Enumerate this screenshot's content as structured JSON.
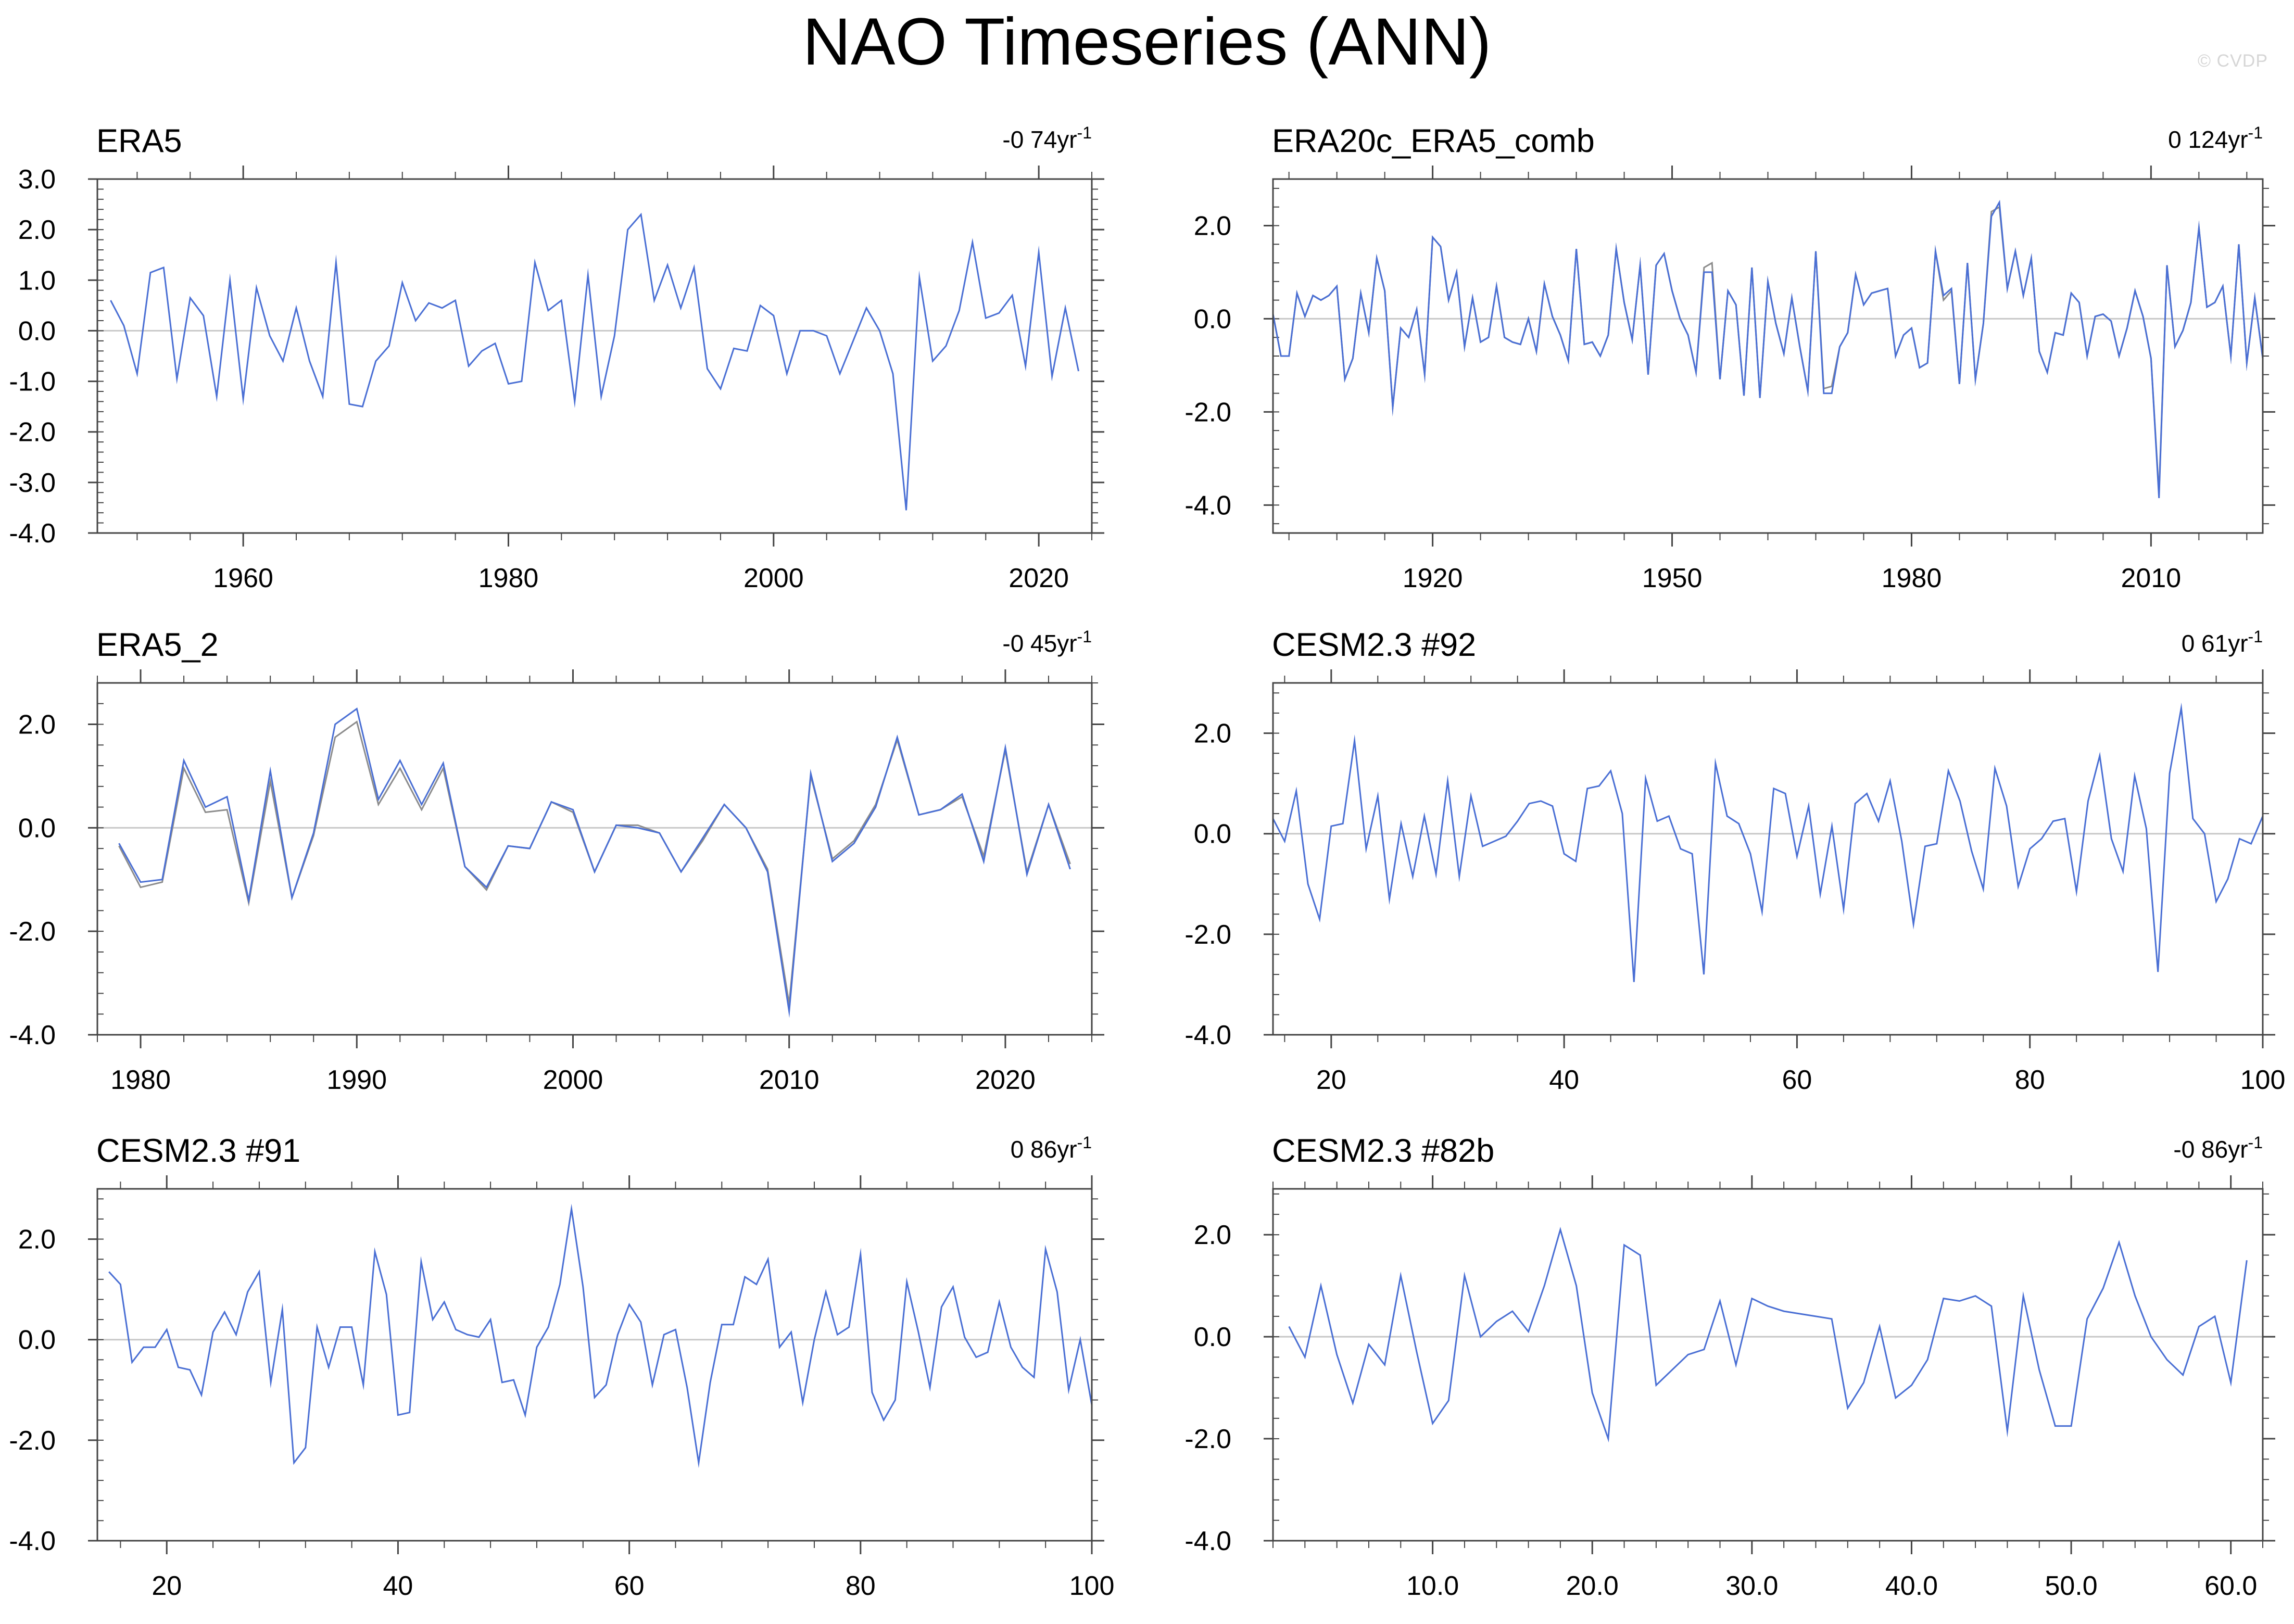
{
  "title": "NAO Timeseries (ANN)",
  "credit": "© CVDP",
  "colors": {
    "series_blue": "#4a6fd4",
    "series_grey": "#8c8c8c",
    "zero_line": "#c8c8c8",
    "frame": "#444444"
  },
  "chart_data": [
    {
      "type": "line",
      "title": "ERA5",
      "trend": {
        "value": "-0 74yr",
        "exponent": "-1"
      },
      "xlim": [
        1949,
        2024
      ],
      "ylim": [
        -4,
        3
      ],
      "xticks": [
        1960,
        1980,
        2000,
        2020
      ],
      "xtick_labels": [
        "1960",
        "1980",
        "2000",
        "2020"
      ],
      "yticks": [
        3,
        2,
        1,
        0,
        -1,
        -2,
        -3,
        -4
      ],
      "ytick_labels": [
        "3.0",
        "2.0",
        "1.0",
        "0.0",
        "-1.0",
        "-2.0",
        "-3.0",
        "-4.0"
      ],
      "x_start": 1950,
      "series": [
        {
          "values": [
            0.6,
            0.1,
            -0.85,
            1.15,
            1.25,
            -0.95,
            0.65,
            0.3,
            -1.3,
            1.0,
            -1.35,
            0.85,
            -0.1,
            -0.6,
            0.45,
            -0.6,
            -1.3,
            1.35,
            -1.45,
            -1.5,
            -0.6,
            -0.3,
            0.95,
            0.2,
            0.55,
            0.45,
            0.6,
            -0.7,
            -0.4,
            -0.25,
            -1.05,
            -1.0,
            1.35,
            0.4,
            0.6,
            -1.4,
            1.1,
            -1.3,
            -0.1,
            2.0,
            2.3,
            0.6,
            1.3,
            0.45,
            1.25,
            -0.75,
            -1.15,
            -0.35,
            -0.4,
            0.5,
            0.3,
            -0.85,
            0.0,
            0.0,
            -0.1,
            -0.85,
            -0.2,
            0.45,
            0.0,
            -0.85,
            -3.55,
            1.05,
            -0.6,
            -0.3,
            0.4,
            1.75,
            0.25,
            0.35,
            0.7,
            -0.7,
            1.55,
            -0.9,
            0.45,
            -0.8
          ]
        }
      ]
    },
    {
      "type": "line",
      "title": "ERA20c_ERA5_comb",
      "trend": {
        "value": "0 124yr",
        "exponent": "-1"
      },
      "xlim": [
        1900,
        2024
      ],
      "ylim": [
        -4.6,
        3.0
      ],
      "xticks": [
        1920,
        1950,
        1980,
        2010
      ],
      "xtick_labels": [
        "1920",
        "1950",
        "1980",
        "2010"
      ],
      "yticks": [
        2,
        0,
        -2,
        -4
      ],
      "ytick_labels": [
        "2.0",
        "0.0",
        "-2.0",
        "-4.0"
      ],
      "x_start": 1900,
      "series": [
        {
          "values": [
            0.1,
            -0.8,
            -0.8,
            0.55,
            0.05,
            0.5,
            0.4,
            0.5,
            0.7,
            -1.3,
            -0.85,
            0.55,
            -0.3,
            1.3,
            0.6,
            -1.9,
            -0.2,
            -0.4,
            0.2,
            -1.2,
            1.75,
            1.55,
            0.4,
            1.0,
            -0.6,
            0.45,
            -0.5,
            -0.4,
            0.7,
            -0.4,
            -0.5,
            -0.55,
            0.0,
            -0.7,
            0.75,
            0.05,
            -0.35,
            -0.9,
            1.5,
            -0.55,
            -0.5,
            -0.8,
            -0.35,
            1.5,
            0.35,
            -0.45,
            1.15,
            -1.2,
            1.15,
            1.4,
            0.6,
            0.0,
            -0.35,
            -1.15,
            1.0,
            1.0,
            -1.3,
            0.6,
            0.3,
            -1.65,
            1.1,
            -1.7,
            0.8,
            -0.1,
            -0.75,
            0.45,
            -0.6,
            -1.55,
            1.45,
            -1.6,
            -1.6,
            -0.6,
            -0.3,
            0.95,
            0.3,
            0.55,
            0.6,
            0.65,
            -0.8,
            -0.35,
            -0.2,
            -1.05,
            -0.95,
            1.45,
            0.5,
            0.65,
            -1.4,
            1.2,
            -1.3,
            -0.1,
            2.2,
            2.5,
            0.65,
            1.45,
            0.5,
            1.3,
            -0.7,
            -1.15,
            -0.3,
            -0.35,
            0.55,
            0.35,
            -0.8,
            0.05,
            0.1,
            -0.05,
            -0.8,
            -0.2,
            0.6,
            0.05,
            -0.85,
            -3.85,
            1.15,
            -0.6,
            -0.25,
            0.35,
            1.95,
            0.25,
            0.35,
            0.7,
            -0.8,
            1.6,
            -0.95,
            0.45,
            -0.85
          ]
        },
        {
          "values": [
            0.1,
            -0.8,
            -0.8,
            0.55,
            0.05,
            0.5,
            0.4,
            0.5,
            0.7,
            -1.3,
            -0.85,
            0.55,
            -0.3,
            1.3,
            0.6,
            -1.9,
            -0.2,
            -0.4,
            0.2,
            -1.2,
            1.75,
            1.55,
            0.4,
            1.0,
            -0.6,
            0.45,
            -0.5,
            -0.4,
            0.7,
            -0.4,
            -0.5,
            -0.55,
            0.0,
            -0.7,
            0.75,
            0.05,
            -0.35,
            -0.9,
            1.5,
            -0.55,
            -0.5,
            -0.8,
            -0.35,
            1.5,
            0.35,
            -0.45,
            1.15,
            -1.2,
            1.15,
            1.4,
            0.6,
            0.0,
            -0.35,
            -1.15,
            1.1,
            1.2,
            -1.3,
            0.6,
            0.3,
            -1.65,
            1.1,
            -1.7,
            0.8,
            -0.1,
            -0.75,
            0.45,
            -0.6,
            -1.55,
            1.45,
            -1.5,
            -1.45,
            -0.6,
            -0.3,
            0.95,
            0.3,
            0.55,
            0.6,
            0.65,
            -0.8,
            -0.35,
            -0.2,
            -1.05,
            -0.95,
            1.45,
            0.4,
            0.6,
            -1.4,
            1.2,
            -1.3,
            -0.1,
            2.3,
            2.4,
            0.65,
            1.45,
            0.5,
            1.3,
            -0.7,
            -1.15,
            -0.3,
            -0.35,
            0.55,
            0.35,
            -0.8,
            0.05,
            0.1,
            -0.05,
            -0.8,
            -0.2,
            0.6,
            0.05,
            -0.85,
            -3.75,
            1.15,
            -0.6,
            -0.25,
            0.35,
            1.95,
            0.25,
            0.35,
            0.7,
            -0.8,
            1.6,
            -0.95,
            0.45,
            -0.85
          ]
        }
      ]
    },
    {
      "type": "line",
      "title": "ERA5_2",
      "trend": {
        "value": "-0 45yr",
        "exponent": "-1"
      },
      "xlim": [
        1978,
        2024
      ],
      "ylim": [
        -4,
        2.8
      ],
      "xticks": [
        1980,
        1990,
        2000,
        2010,
        2020
      ],
      "xtick_labels": [
        "1980",
        "1990",
        "2000",
        "2010",
        "2020"
      ],
      "yticks": [
        2,
        0,
        -2,
        -4
      ],
      "ytick_labels": [
        "2.0",
        "0.0",
        "-2.0",
        "-4.0"
      ],
      "x_start": 1979,
      "series": [
        {
          "values": [
            -0.3,
            -1.05,
            -1.0,
            1.3,
            0.4,
            0.6,
            -1.4,
            1.1,
            -1.35,
            -0.1,
            2.0,
            2.3,
            0.55,
            1.3,
            0.45,
            1.25,
            -0.75,
            -1.15,
            -0.35,
            -0.4,
            0.5,
            0.35,
            -0.85,
            0.05,
            0.0,
            -0.1,
            -0.85,
            -0.2,
            0.45,
            0.0,
            -0.85,
            -3.55,
            1.05,
            -0.65,
            -0.3,
            0.4,
            1.75,
            0.25,
            0.35,
            0.65,
            -0.65,
            1.55,
            -0.9,
            0.45,
            -0.8
          ]
        },
        {
          "values": [
            -0.35,
            -1.15,
            -1.05,
            1.15,
            0.3,
            0.35,
            -1.45,
            0.9,
            -1.35,
            -0.15,
            1.75,
            2.05,
            0.45,
            1.15,
            0.35,
            1.15,
            -0.75,
            -1.2,
            -0.35,
            -0.4,
            0.5,
            0.3,
            -0.85,
            0.05,
            0.05,
            -0.1,
            -0.85,
            -0.25,
            0.45,
            0.0,
            -0.8,
            -3.4,
            1.0,
            -0.6,
            -0.25,
            0.45,
            1.7,
            0.25,
            0.35,
            0.6,
            -0.55,
            1.5,
            -0.85,
            0.45,
            -0.7
          ]
        }
      ]
    },
    {
      "type": "line",
      "title": "CESM2.3 #92",
      "trend": {
        "value": "0 61yr",
        "exponent": "-1"
      },
      "xlim": [
        15,
        100
      ],
      "ylim": [
        -4,
        3.0
      ],
      "xticks": [
        20,
        40,
        60,
        80,
        100
      ],
      "xtick_labels": [
        "20",
        "40",
        "60",
        "80",
        "100"
      ],
      "yticks": [
        2,
        0,
        -2,
        -4
      ],
      "ytick_labels": [
        "2.0",
        "0.0",
        "-2.0",
        "-4.0"
      ],
      "x_start": 15,
      "series": [
        {
          "values": [
            0.3,
            -0.15,
            0.85,
            -1.0,
            -1.7,
            0.15,
            0.2,
            1.85,
            -0.3,
            0.75,
            -1.3,
            0.2,
            -0.85,
            0.35,
            -0.8,
            1.05,
            -0.85,
            0.75,
            -0.25,
            -0.15,
            -0.05,
            0.25,
            0.6,
            0.65,
            0.55,
            -0.4,
            -0.55,
            0.9,
            0.95,
            1.25,
            0.4,
            -2.95,
            1.1,
            0.25,
            0.35,
            -0.3,
            -0.4,
            -2.8,
            1.4,
            0.35,
            0.2,
            -0.4,
            -1.55,
            0.9,
            0.8,
            -0.45,
            0.55,
            -1.2,
            0.15,
            -1.5,
            0.6,
            0.8,
            0.25,
            1.05,
            -0.15,
            -1.8,
            -0.25,
            -0.2,
            1.25,
            0.65,
            -0.35,
            -1.1,
            1.3,
            0.55,
            -1.05,
            -0.3,
            -0.1,
            0.25,
            0.3,
            -1.15,
            0.65,
            1.55,
            -0.1,
            -0.75,
            1.15,
            0.1,
            -2.75,
            1.2,
            2.5,
            0.3,
            0.0,
            -1.35,
            -0.9,
            -0.1,
            -0.2,
            0.35
          ]
        }
      ]
    },
    {
      "type": "line",
      "title": "CESM2.3 #91",
      "trend": {
        "value": "0 86yr",
        "exponent": "-1"
      },
      "xlim": [
        14,
        100
      ],
      "ylim": [
        -4,
        3.0
      ],
      "xticks": [
        20,
        40,
        60,
        80,
        100
      ],
      "xtick_labels": [
        "20",
        "40",
        "60",
        "80",
        "100"
      ],
      "yticks": [
        2,
        0,
        -2,
        -4
      ],
      "ytick_labels": [
        "2.0",
        "0.0",
        "-2.0",
        "-4.0"
      ],
      "x_start": 15,
      "series": [
        {
          "values": [
            1.35,
            1.1,
            -0.45,
            -0.15,
            -0.15,
            0.2,
            -0.55,
            -0.6,
            -1.1,
            0.15,
            0.55,
            0.1,
            0.95,
            1.35,
            -0.85,
            0.6,
            -2.45,
            -2.15,
            0.25,
            -0.55,
            0.25,
            0.25,
            -0.9,
            1.75,
            0.9,
            -1.5,
            -1.45,
            1.55,
            0.4,
            0.75,
            0.2,
            0.1,
            0.05,
            0.4,
            -0.85,
            -0.8,
            -1.5,
            -0.15,
            0.25,
            1.1,
            2.6,
            1.05,
            -1.15,
            -0.9,
            0.1,
            0.7,
            0.35,
            -0.9,
            0.1,
            0.2,
            -0.95,
            -2.45,
            -0.85,
            0.3,
            0.3,
            1.25,
            1.1,
            1.6,
            -0.15,
            0.15,
            -1.25,
            0.0,
            0.95,
            0.1,
            0.25,
            1.7,
            -1.05,
            -1.6,
            -1.2,
            1.15,
            0.15,
            -0.95,
            0.65,
            1.05,
            0.05,
            -0.35,
            -0.25,
            0.75,
            -0.15,
            -0.55,
            -0.75,
            1.8,
            0.95,
            -1.0,
            0.0,
            -1.3
          ]
        }
      ]
    },
    {
      "type": "line",
      "title": "CESM2.3 #82b",
      "trend": {
        "value": "-0 86yr",
        "exponent": "-1"
      },
      "xlim": [
        0,
        62
      ],
      "ylim": [
        -4,
        2.9
      ],
      "xticks": [
        10,
        20,
        30,
        40,
        50,
        60
      ],
      "xtick_labels": [
        "10.0",
        "20.0",
        "30.0",
        "40.0",
        "50.0",
        "60.0"
      ],
      "yticks": [
        2,
        0,
        -2,
        -4
      ],
      "ytick_labels": [
        "2.0",
        "0.0",
        "-2.0",
        "-4.0"
      ],
      "x_start": 1,
      "series": [
        {
          "values": [
            0.2,
            -0.4,
            1.0,
            -0.35,
            -1.3,
            -0.15,
            -0.55,
            1.2,
            -0.3,
            -1.7,
            -1.25,
            1.2,
            0.0,
            0.3,
            0.5,
            0.1,
            1.0,
            2.1,
            1.0,
            -1.1,
            -2.0,
            1.8,
            1.6,
            -0.95,
            -0.65,
            -0.35,
            -0.25,
            0.7,
            -0.55,
            0.75,
            0.6,
            0.5,
            0.45,
            0.4,
            0.35,
            -1.4,
            -0.9,
            0.2,
            -1.2,
            -0.95,
            -0.45,
            0.75,
            0.7,
            0.8,
            0.6,
            -1.85,
            0.8,
            -0.65,
            -1.75,
            -1.75,
            0.35,
            0.95,
            1.85,
            0.8,
            0.0,
            -0.45,
            -0.75,
            0.2,
            0.4,
            -0.9,
            1.5
          ]
        }
      ]
    }
  ]
}
